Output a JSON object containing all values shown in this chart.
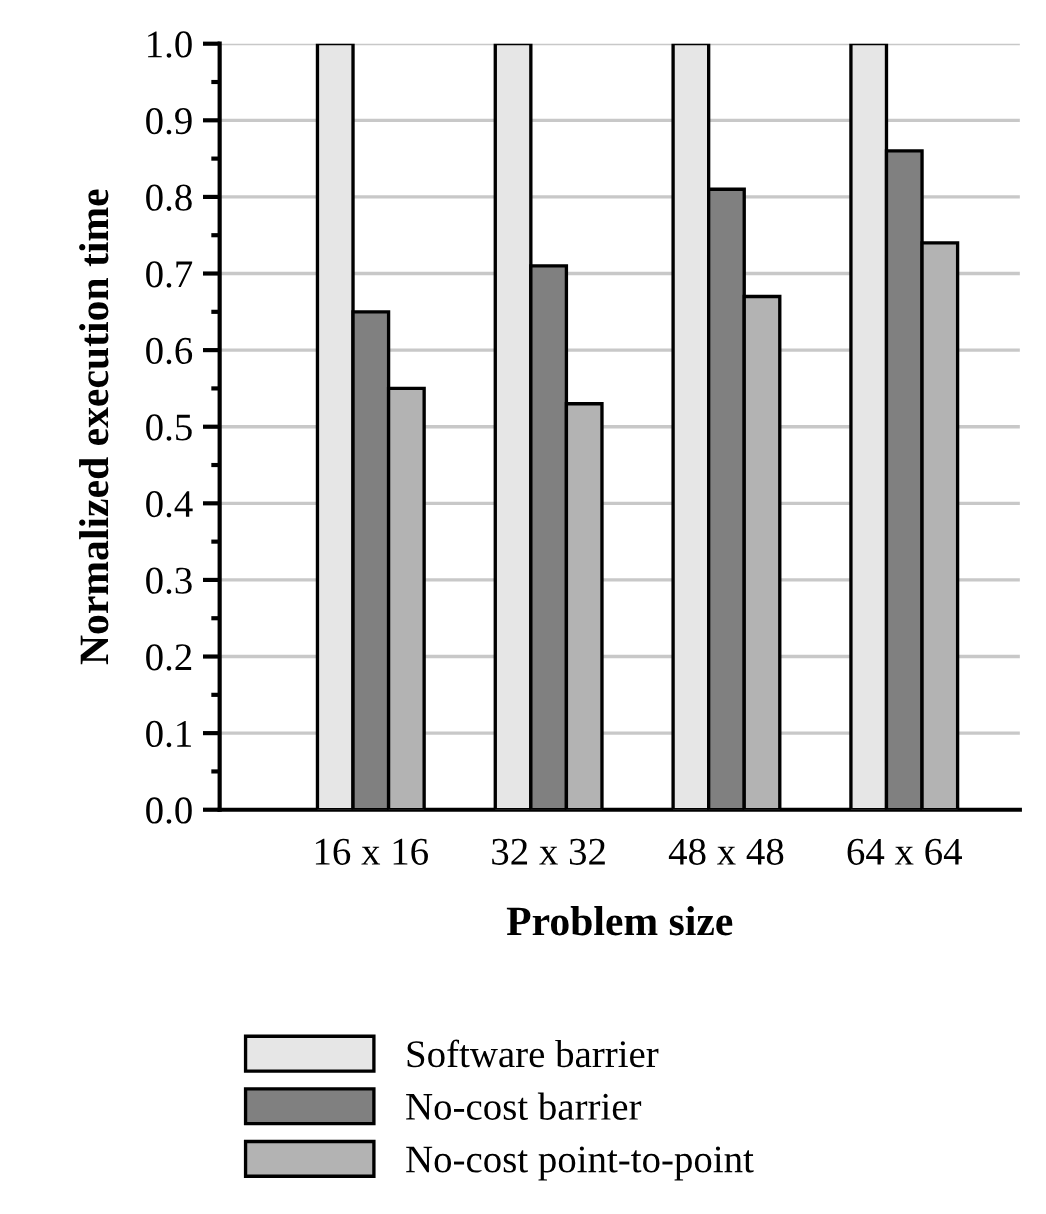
{
  "chart_data": {
    "type": "bar",
    "xlabel": "Problem size",
    "ylabel": "Normalized execution time",
    "categories": [
      "16 x 16",
      "32 x 32",
      "48 x 48",
      "64 x 64"
    ],
    "series": [
      {
        "name": "Software barrier",
        "color": "#e6e6e6",
        "values": [
          1.0,
          1.0,
          1.0,
          1.0
        ]
      },
      {
        "name": "No-cost barrier",
        "color": "#808080",
        "values": [
          0.65,
          0.71,
          0.81,
          0.86
        ]
      },
      {
        "name": "No-cost point-to-point",
        "color": "#b3b3b3",
        "values": [
          0.55,
          0.53,
          0.67,
          0.74
        ]
      }
    ],
    "ylim": [
      0.0,
      1.0
    ],
    "yticks": [
      {
        "value": 0,
        "label": "0.0"
      },
      0.1,
      0.2,
      0.3,
      0.4,
      0.5,
      0.6,
      0.7,
      0.8,
      0.9,
      {
        "value": 1,
        "label": "1.0"
      }
    ],
    "grid": "y",
    "legend": "bottom"
  }
}
